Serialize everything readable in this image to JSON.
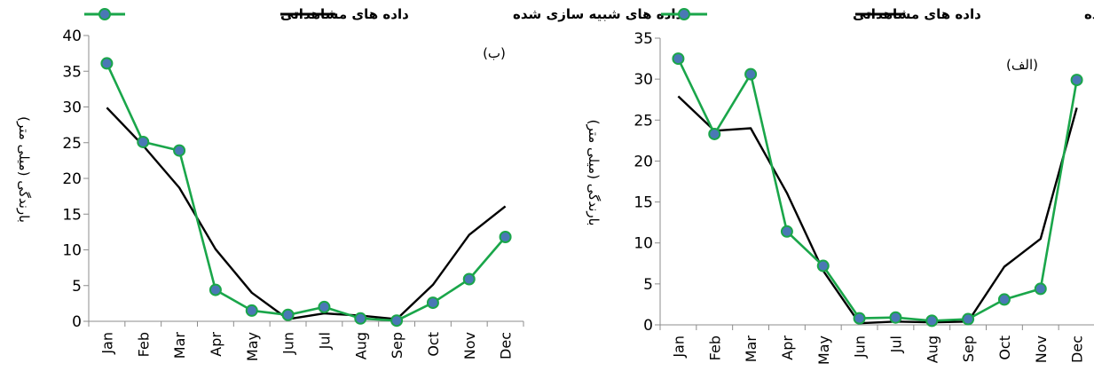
{
  "chart_data": [
    {
      "type": "line",
      "panel_label": "(ب)",
      "ylabel": "بارندگی (میلی متر)",
      "xlabel": "",
      "categories": [
        "Jan",
        "Feb",
        "Mar",
        "Apr",
        "May",
        "Jun",
        "Jul",
        "Aug",
        "Sep",
        "Oct",
        "Nov",
        "Dec"
      ],
      "ylim": [
        0,
        40
      ],
      "yticks": [
        0,
        5,
        10,
        15,
        20,
        25,
        30,
        35,
        40
      ],
      "legend_position": "top",
      "series": [
        {
          "name": "داده های مشاهداتی",
          "values": [
            36.1,
            25.1,
            23.9,
            4.4,
            1.5,
            0.9,
            2.0,
            0.4,
            0.1,
            2.6,
            5.9,
            11.8
          ],
          "color": "#1aa64a",
          "marker": "circle",
          "marker_color": "#4a78b5"
        },
        {
          "name": "داده های شبیه سازی شده",
          "values": [
            29.9,
            24.6,
            18.7,
            10.1,
            4.0,
            0.3,
            1.1,
            0.8,
            0.3,
            5.1,
            12.1,
            16.1
          ],
          "color": "#000000",
          "marker": "none"
        }
      ]
    },
    {
      "type": "line",
      "panel_label": "(الف)",
      "ylabel": "بارندگی (میلی متر)",
      "xlabel": "",
      "categories": [
        "Jan",
        "Feb",
        "Mar",
        "Apr",
        "May",
        "Jun",
        "Jul",
        "Aug",
        "Sep",
        "Oct",
        "Nov",
        "Dec"
      ],
      "ylim": [
        0,
        35
      ],
      "yticks": [
        0,
        5,
        10,
        15,
        20,
        25,
        30,
        35
      ],
      "legend_position": "top",
      "series": [
        {
          "name": "داده های مشاهداتی",
          "values": [
            32.5,
            23.3,
            30.6,
            11.4,
            7.2,
            0.8,
            0.9,
            0.5,
            0.7,
            3.1,
            4.4,
            29.9
          ],
          "color": "#1aa64a",
          "marker": "circle",
          "marker_color": "#4a78b5"
        },
        {
          "name": "داده های شبیه سازی شده",
          "values": [
            27.9,
            23.7,
            24.0,
            16.1,
            6.6,
            0.2,
            0.4,
            0.3,
            0.4,
            7.1,
            10.5,
            26.5
          ],
          "color": "#000000",
          "marker": "none"
        }
      ]
    }
  ]
}
